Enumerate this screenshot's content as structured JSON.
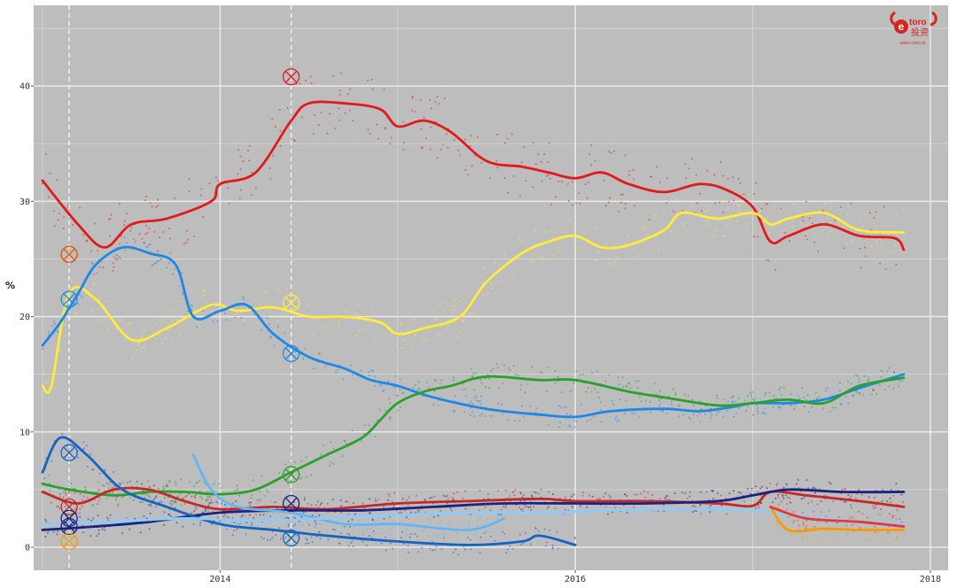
{
  "watermark": {
    "brand_text": "toro",
    "chinese_text": "投资",
    "url_text": "etoro.com.cn",
    "color": "#d4261f"
  },
  "colors": {
    "plot_background": "#bdbdbd",
    "gridline": "#d9d9d9",
    "major_gridline": "#eaeaea",
    "event_line": "#ffffff"
  },
  "chart_data": {
    "type": "line",
    "title": "",
    "xlabel": "",
    "ylabel": "%",
    "xlim": [
      2012.95,
      2018.1
    ],
    "ylim": [
      -2,
      47
    ],
    "x_ticks": [
      2014,
      2016,
      2018
    ],
    "x_tick_labels": [
      "2014",
      "2016",
      "2018"
    ],
    "y_ticks": [
      0,
      10,
      20,
      30,
      40
    ],
    "y_tick_labels": [
      "0",
      "10",
      "20",
      "30",
      "40"
    ],
    "grid": true,
    "legend": "none",
    "event_dates": [
      2013.15,
      2014.4
    ],
    "series": [
      {
        "color": "#e31a1c",
        "x": [
          2013.0,
          2013.2,
          2013.35,
          2013.5,
          2013.7,
          2013.95,
          2014.0,
          2014.2,
          2014.4,
          2014.5,
          2014.7,
          2014.9,
          2015.0,
          2015.15,
          2015.3,
          2015.5,
          2015.7,
          2015.85,
          2016.0,
          2016.15,
          2016.3,
          2016.5,
          2016.7,
          2016.85,
          2017.0,
          2017.1,
          2017.2,
          2017.4,
          2017.6,
          2017.8,
          2017.85
        ],
        "y": [
          31.8,
          28,
          26,
          28,
          28.5,
          30,
          31.5,
          32.5,
          37,
          38.5,
          38.5,
          38,
          36.5,
          37,
          36,
          33.5,
          33,
          32.5,
          32,
          32.5,
          31.5,
          30.8,
          31.5,
          31,
          29.5,
          26.5,
          27,
          28,
          27,
          26.8,
          25.8
        ]
      },
      {
        "color": "#ffeb3b",
        "x": [
          2013.0,
          2013.05,
          2013.15,
          2013.3,
          2013.5,
          2013.7,
          2013.95,
          2014.1,
          2014.3,
          2014.5,
          2014.7,
          2014.9,
          2015.0,
          2015.15,
          2015.35,
          2015.5,
          2015.7,
          2015.85,
          2016.0,
          2016.15,
          2016.3,
          2016.5,
          2016.6,
          2016.8,
          2017.0,
          2017.1,
          2017.2,
          2017.4,
          2017.6,
          2017.85
        ],
        "y": [
          14,
          14,
          22,
          21.5,
          18,
          19,
          21,
          20.5,
          20.8,
          20,
          20,
          19.5,
          18.5,
          19,
          20,
          23,
          25.5,
          26.5,
          27,
          26,
          26.2,
          27.5,
          29,
          28.5,
          29,
          28,
          28.5,
          29,
          27.5,
          27.3
        ]
      },
      {
        "color": "#1e88e5",
        "x": [
          2013.0,
          2013.1,
          2013.2,
          2013.3,
          2013.45,
          2013.6,
          2013.75,
          2013.85,
          2014.0,
          2014.15,
          2014.3,
          2014.5,
          2014.7,
          2014.85,
          2015.0,
          2015.2,
          2015.5,
          2015.8,
          2016.0,
          2016.2,
          2016.5,
          2016.7,
          2016.9,
          2017.0,
          2017.2,
          2017.4,
          2017.6,
          2017.85
        ],
        "y": [
          17.5,
          19.5,
          22,
          24.5,
          26,
          25.5,
          24.5,
          20,
          20.5,
          21,
          18.5,
          16.5,
          15.5,
          14.5,
          14,
          13,
          12,
          11.5,
          11.3,
          11.8,
          12,
          11.8,
          12.2,
          12.5,
          12.5,
          12.8,
          13.8,
          15
        ]
      },
      {
        "color": "#2ca02c",
        "x": [
          2013.0,
          2013.15,
          2013.4,
          2013.6,
          2013.8,
          2014.0,
          2014.2,
          2014.4,
          2014.6,
          2014.8,
          2014.9,
          2015.0,
          2015.15,
          2015.3,
          2015.5,
          2015.8,
          2016.0,
          2016.3,
          2016.5,
          2016.8,
          2017.0,
          2017.2,
          2017.4,
          2017.6,
          2017.85
        ],
        "y": [
          5.5,
          5,
          4.5,
          4.8,
          4.8,
          4.6,
          5,
          6.5,
          8,
          9.5,
          11,
          12.5,
          13.5,
          14,
          14.8,
          14.5,
          14.5,
          13.5,
          13,
          12.3,
          12.5,
          12.8,
          12.5,
          14,
          14.7
        ]
      },
      {
        "color": "#c62828",
        "x": [
          2013.0,
          2013.2,
          2013.4,
          2013.6,
          2013.8,
          2014.0,
          2014.3,
          2014.6,
          2015.0,
          2015.4,
          2015.8,
          2016.0,
          2016.4,
          2016.8,
          2017.0,
          2017.1,
          2017.3,
          2017.6,
          2017.85
        ],
        "y": [
          4.8,
          3.8,
          5,
          5,
          4,
          3.3,
          3.5,
          3.3,
          3.8,
          4,
          4.2,
          4,
          4,
          3.8,
          3.6,
          4.8,
          4.5,
          4,
          3.5
        ]
      },
      {
        "color": "#1a237e",
        "x": [
          2013.0,
          2013.3,
          2013.6,
          2014.0,
          2014.4,
          2014.8,
          2015.2,
          2015.6,
          2016.0,
          2016.4,
          2016.8,
          2017.0,
          2017.2,
          2017.5,
          2017.85
        ],
        "y": [
          1.5,
          1.8,
          2.2,
          3,
          3.2,
          3.2,
          3.5,
          3.8,
          3.8,
          3.8,
          4,
          4.5,
          5,
          4.8,
          4.8
        ]
      },
      {
        "color": "#1565c0",
        "x": [
          2013.0,
          2013.1,
          2013.25,
          2013.45,
          2013.7,
          2014.0,
          2014.3,
          2014.6,
          2015.0,
          2015.4,
          2015.7,
          2015.8,
          2016.0
        ],
        "y": [
          6.5,
          9.5,
          8,
          5,
          3.5,
          2,
          1.5,
          1,
          0.5,
          0.2,
          0.5,
          1,
          0.2
        ]
      },
      {
        "color": "#64b5f6",
        "x": [
          2013.85,
          2013.95,
          2014.1,
          2014.4,
          2014.7,
          2015.0,
          2015.4,
          2015.6
        ],
        "y": [
          8,
          5,
          3.5,
          3,
          2,
          2,
          1.5,
          2.5
        ]
      },
      {
        "color": "#90caf9",
        "x": [
          2013.0,
          2013.4,
          2013.8,
          2014.2,
          2014.6,
          2015.0,
          2015.4,
          2015.8,
          2016.2,
          2016.6,
          2017.0,
          2017.4,
          2017.85
        ],
        "y": [
          2,
          2.2,
          2.5,
          2.3,
          2.5,
          2.8,
          3,
          3,
          3.2,
          3.3,
          3.2,
          2.5,
          2
        ]
      },
      {
        "color": "#ff9800",
        "x": [
          2017.1,
          2017.2,
          2017.4,
          2017.6,
          2017.85
        ],
        "y": [
          3.5,
          1.5,
          1.6,
          1.5,
          1.5
        ]
      },
      {
        "color": "#e53935",
        "x": [
          2017.1,
          2017.3,
          2017.6,
          2017.85
        ],
        "y": [
          3.5,
          2.5,
          2.2,
          1.8
        ]
      }
    ],
    "markers": [
      {
        "color": "#e65100",
        "x": 2013.15,
        "y": 25.4
      },
      {
        "color": "#1e88e5",
        "x": 2013.15,
        "y": 21.5
      },
      {
        "color": "#1565c0",
        "x": 2013.15,
        "y": 8.2
      },
      {
        "color": "#c62828",
        "x": 2013.15,
        "y": 3.5
      },
      {
        "color": "#1a237e",
        "x": 2013.15,
        "y": 2.5
      },
      {
        "color": "#1a237e",
        "x": 2013.15,
        "y": 1.8
      },
      {
        "color": "#ff9800",
        "x": 2013.15,
        "y": 0.5
      },
      {
        "color": "#e31a1c",
        "x": 2014.4,
        "y": 40.8
      },
      {
        "color": "#ffeb3b",
        "x": 2014.4,
        "y": 21.2
      },
      {
        "color": "#1e88e5",
        "x": 2014.4,
        "y": 16.8
      },
      {
        "color": "#2ca02c",
        "x": 2014.4,
        "y": 6.3
      },
      {
        "color": "#1a237e",
        "x": 2014.4,
        "y": 3.8
      },
      {
        "color": "#1565c0",
        "x": 2014.4,
        "y": 0.8
      }
    ]
  }
}
